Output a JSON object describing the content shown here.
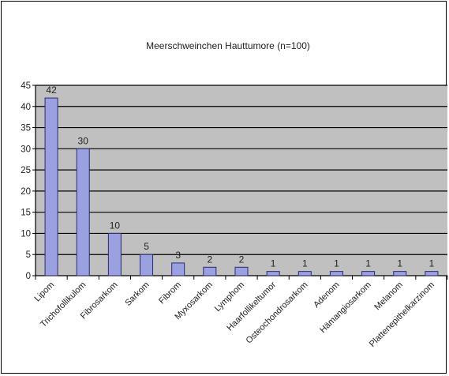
{
  "chart_data": {
    "type": "bar",
    "title": "Meerschweinchen Hauttumore (n=100)",
    "xlabel": "",
    "ylabel": "",
    "categories": [
      "Lipom",
      "Trichofollikulom",
      "Fibrosarkom",
      "Sarkom",
      "Fibrom",
      "Myxosarkom",
      "Lymphom",
      "Haarfollikeltumor",
      "Osteochondrosarkom",
      "Adenom",
      "Hämangiosarkom",
      "Melanom",
      "Plattenepithelkarzinom"
    ],
    "series": [
      {
        "values": [
          42,
          30,
          10,
          5,
          3,
          2,
          2,
          1,
          1,
          1,
          1,
          1,
          1
        ],
        "data_labels": [
          "42",
          "30",
          "10",
          "5",
          "3",
          "2",
          "2",
          "1",
          "1",
          "1",
          "1",
          "1",
          "1"
        ]
      }
    ],
    "ylim": [
      0,
      45
    ],
    "yticks": [
      0,
      5,
      10,
      15,
      20,
      25,
      30,
      35,
      40,
      45
    ],
    "grid": true,
    "legend": "none",
    "colors": {
      "plot_background": "#c0c0c0",
      "bar_fill": "#9aa0e0",
      "bar_stroke": "#2b2b6e",
      "gridline": "#000000"
    }
  }
}
